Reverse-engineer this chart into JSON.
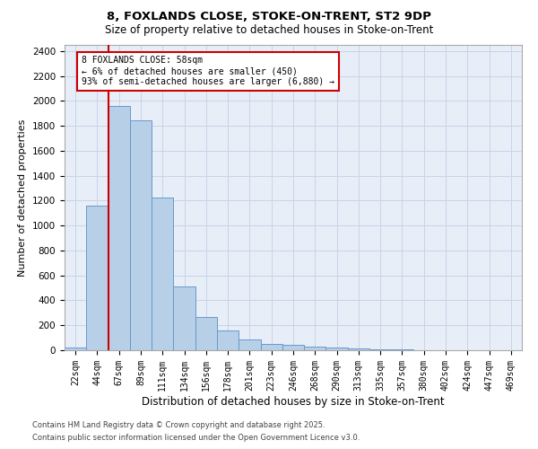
{
  "title1": "8, FOXLANDS CLOSE, STOKE-ON-TRENT, ST2 9DP",
  "title2": "Size of property relative to detached houses in Stoke-on-Trent",
  "xlabel": "Distribution of detached houses by size in Stoke-on-Trent",
  "ylabel": "Number of detached properties",
  "categories": [
    "22sqm",
    "44sqm",
    "67sqm",
    "89sqm",
    "111sqm",
    "134sqm",
    "156sqm",
    "178sqm",
    "201sqm",
    "223sqm",
    "246sqm",
    "268sqm",
    "290sqm",
    "313sqm",
    "335sqm",
    "357sqm",
    "380sqm",
    "402sqm",
    "424sqm",
    "447sqm",
    "469sqm"
  ],
  "values": [
    25,
    1160,
    1960,
    1845,
    1225,
    515,
    270,
    155,
    90,
    50,
    40,
    30,
    20,
    15,
    5,
    5,
    3,
    2,
    2,
    2,
    2
  ],
  "bar_color": "#b8cfe8",
  "bar_edge_color": "#6699cc",
  "grid_color": "#c8d4e8",
  "background_color": "#e8eef8",
  "vline_x_idx": 1.5,
  "vline_color": "#cc0000",
  "annotation_text": "8 FOXLANDS CLOSE: 58sqm\n← 6% of detached houses are smaller (450)\n93% of semi-detached houses are larger (6,880) →",
  "annotation_box_color": "#cc0000",
  "footer1": "Contains HM Land Registry data © Crown copyright and database right 2025.",
  "footer2": "Contains public sector information licensed under the Open Government Licence v3.0.",
  "ylim": [
    0,
    2450
  ],
  "yticks": [
    0,
    200,
    400,
    600,
    800,
    1000,
    1200,
    1400,
    1600,
    1800,
    2000,
    2200,
    2400
  ]
}
